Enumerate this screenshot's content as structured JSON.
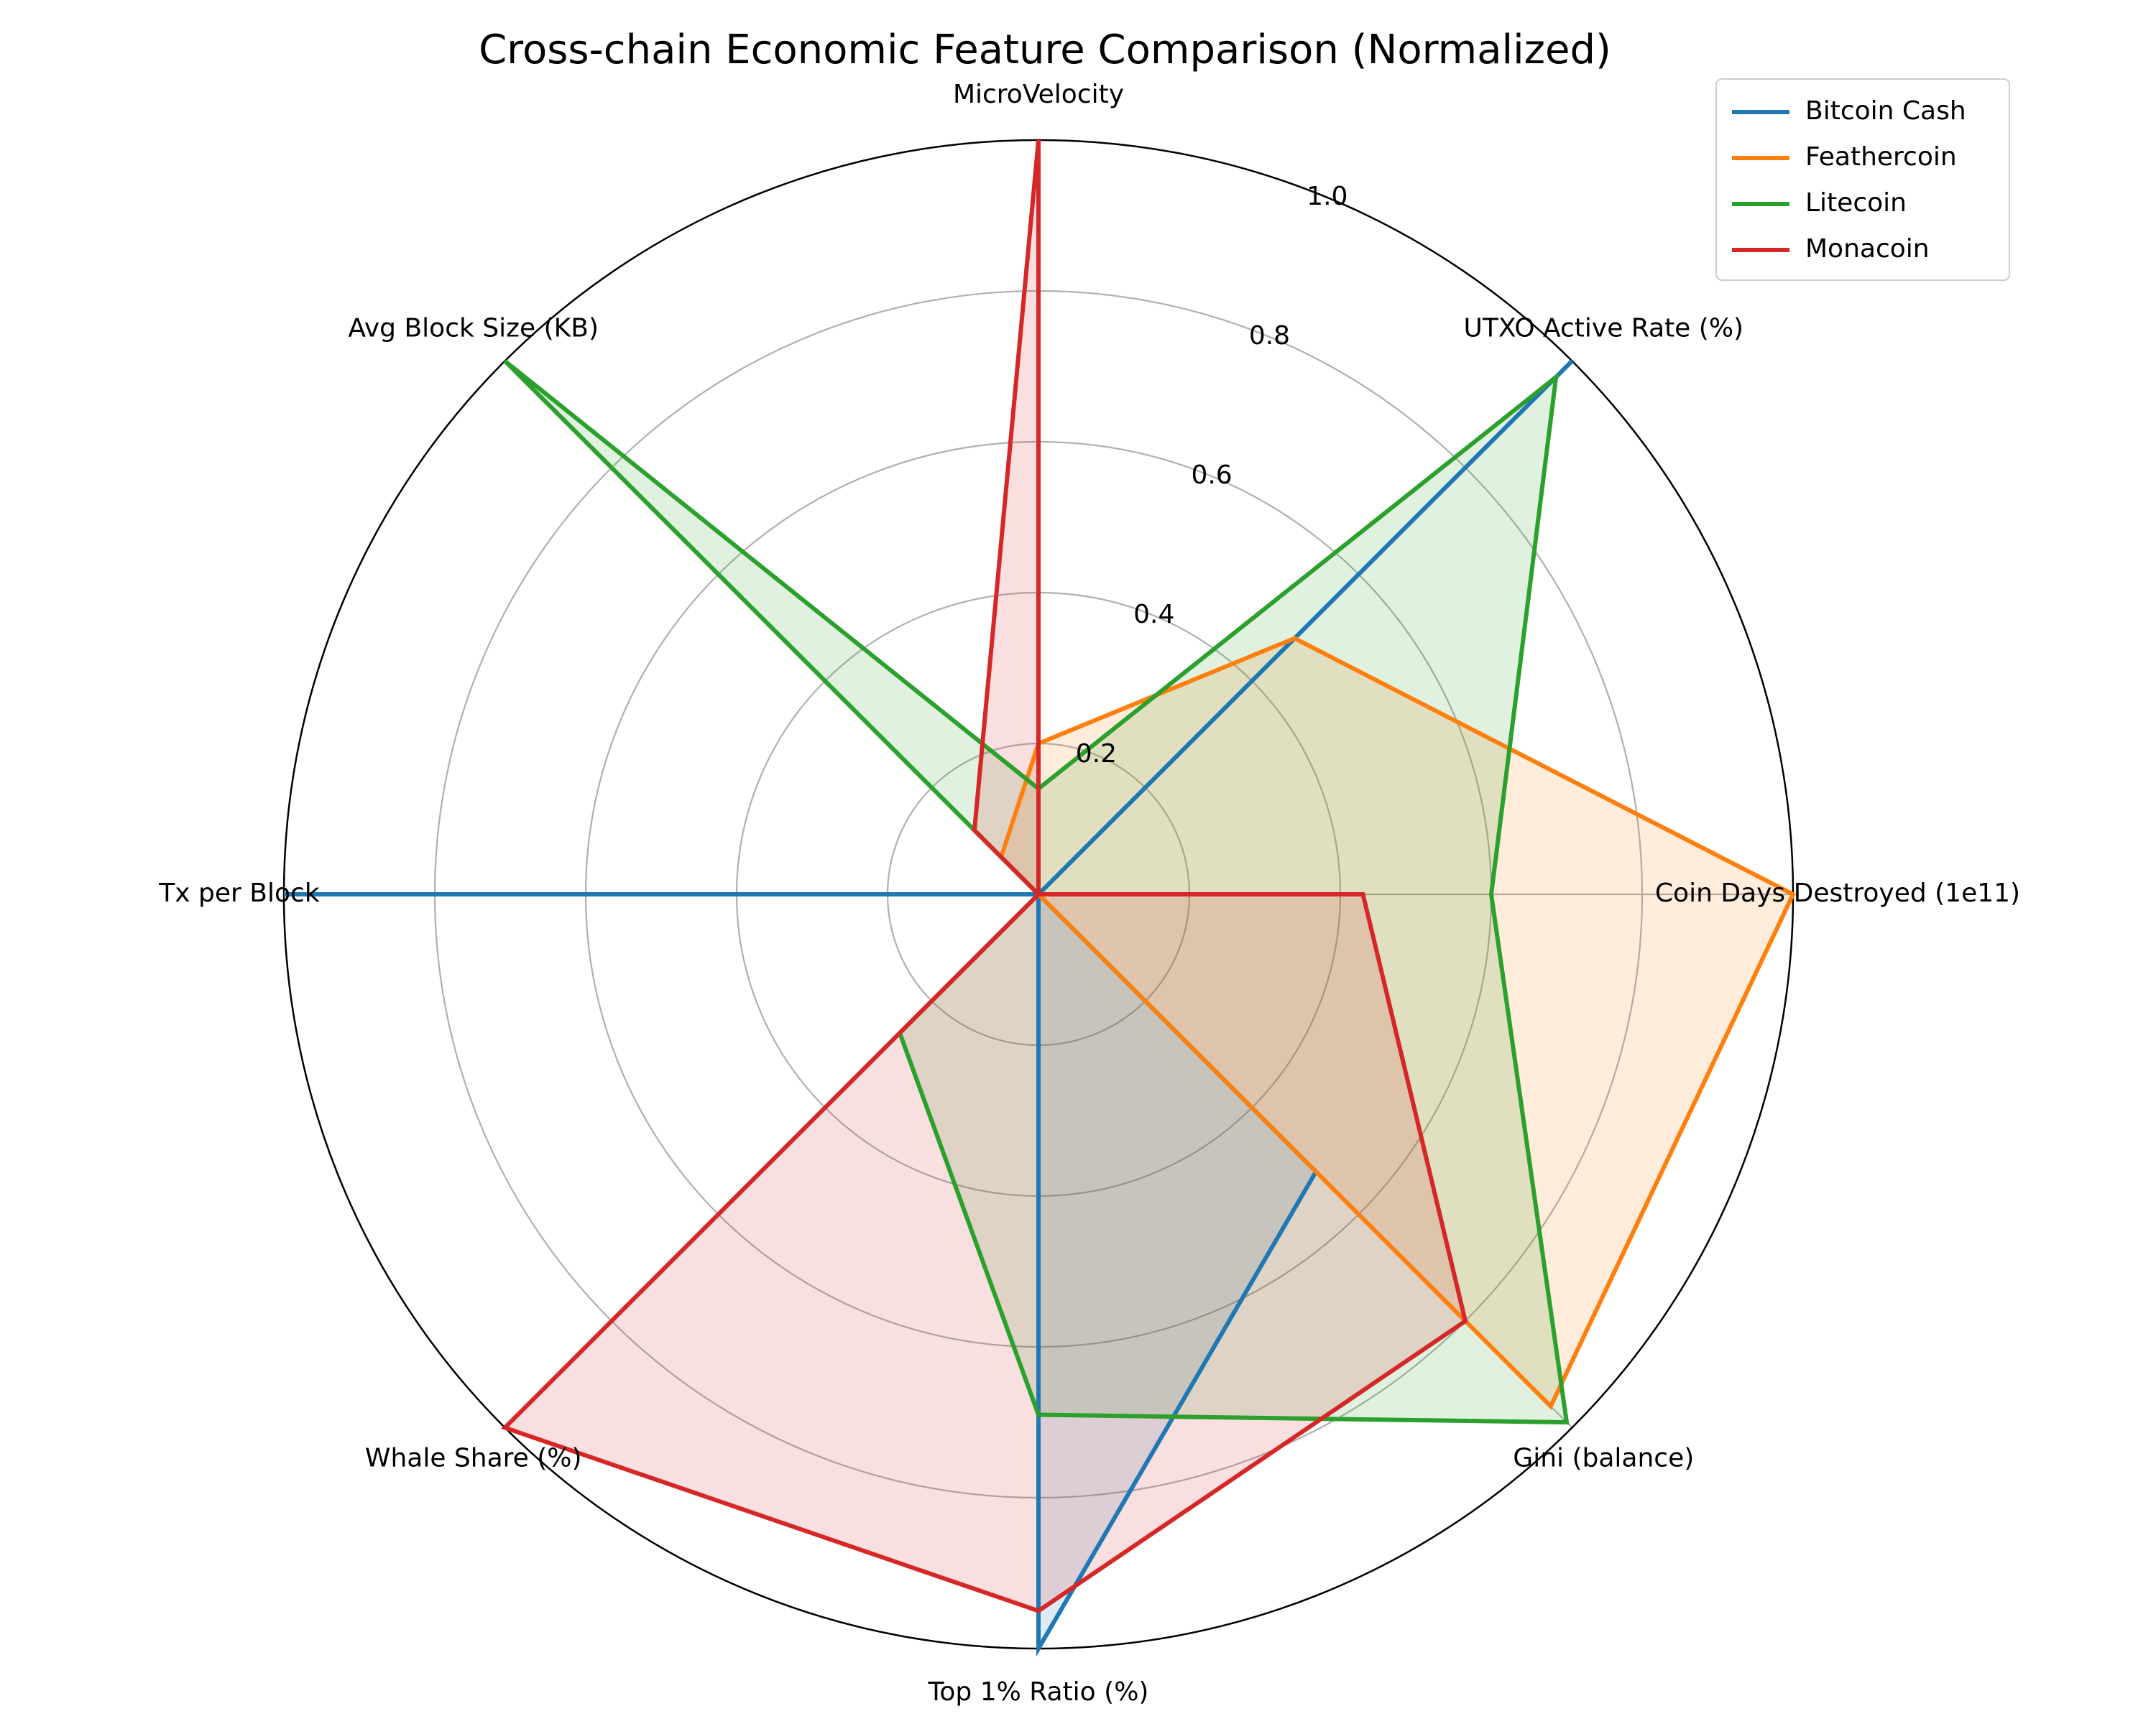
{
  "chart_data": {
    "type": "radar",
    "title": "Cross-chain Economic Feature Comparison (Normalized)",
    "axes": [
      "MicroVelocity",
      "UTXO Active Rate (%)",
      "Coin Days Destroyed (1e11)",
      "Gini (balance)",
      "Top 1% Ratio (%)",
      "Whale Share (%)",
      "Tx per Block",
      "Avg Block Size (KB)"
    ],
    "rlim": [
      0,
      1
    ],
    "rticks": [
      0.2,
      0.4,
      0.6,
      0.8,
      1.0
    ],
    "rtick_labels": [
      "0.2",
      "0.4",
      "0.6",
      "0.8",
      "1.0"
    ],
    "grid": true,
    "legend_position": "top-right",
    "series": [
      {
        "name": "Bitcoin Cash",
        "color": "#1f77b4",
        "values": [
          0.0,
          1.0,
          0.0,
          0.52,
          1.0,
          0.0,
          1.0,
          0.0
        ]
      },
      {
        "name": "Feathercoin",
        "color": "#ff7f0e",
        "values": [
          0.2,
          0.48,
          1.0,
          0.96,
          0.0,
          0.0,
          0.0,
          0.07
        ]
      },
      {
        "name": "Litecoin",
        "color": "#2ca02c",
        "values": [
          0.14,
          0.97,
          0.6,
          0.99,
          0.69,
          0.26,
          0.0,
          1.0
        ]
      },
      {
        "name": "Monacoin",
        "color": "#d62728",
        "values": [
          1.0,
          0.0,
          0.43,
          0.8,
          0.95,
          1.0,
          0.0,
          0.12
        ]
      }
    ]
  }
}
